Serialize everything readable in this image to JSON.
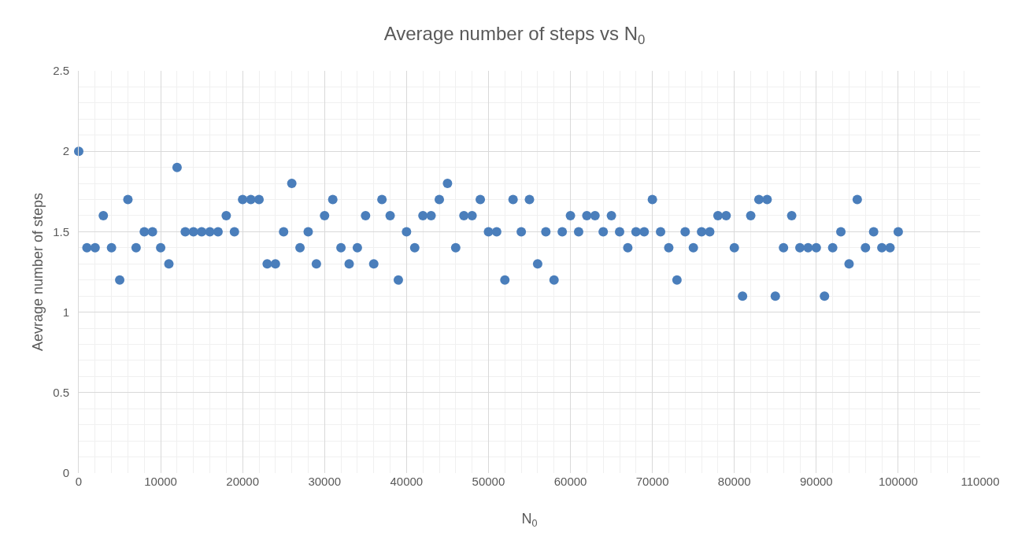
{
  "chart_data": {
    "type": "scatter",
    "title": "Average number of steps vs N$_{0}$",
    "xlabel": "N$_{0}$",
    "ylabel": "Aevrage number of steps",
    "x": [
      0,
      1000,
      2000,
      3000,
      4000,
      5000,
      6000,
      7000,
      8000,
      9000,
      10000,
      11000,
      12000,
      13000,
      14000,
      15000,
      16000,
      17000,
      18000,
      19000,
      20000,
      21000,
      22000,
      23000,
      24000,
      25000,
      26000,
      27000,
      28000,
      29000,
      30000,
      31000,
      32000,
      33000,
      34000,
      35000,
      36000,
      37000,
      38000,
      39000,
      40000,
      41000,
      42000,
      43000,
      44000,
      45000,
      46000,
      47000,
      48000,
      49000,
      50000,
      51000,
      52000,
      53000,
      54000,
      55000,
      56000,
      57000,
      58000,
      59000,
      60000,
      61000,
      62000,
      63000,
      64000,
      65000,
      66000,
      67000,
      68000,
      69000,
      70000,
      71000,
      72000,
      73000,
      74000,
      75000,
      76000,
      77000,
      78000,
      79000,
      80000,
      81000,
      82000,
      83000,
      84000,
      85000,
      86000,
      87000,
      88000,
      89000,
      90000,
      91000,
      92000,
      93000,
      94000,
      95000,
      96000,
      97000,
      98000,
      99000,
      100000
    ],
    "series": [
      {
        "color": "#4a7ebb",
        "values": [
          2.0,
          1.4,
          1.4,
          1.6,
          1.4,
          1.2,
          1.7,
          1.4,
          1.5,
          1.5,
          1.4,
          1.3,
          1.9,
          1.5,
          1.5,
          1.5,
          1.5,
          1.5,
          1.6,
          1.5,
          1.7,
          1.7,
          1.7,
          1.3,
          1.3,
          1.5,
          1.8,
          1.4,
          1.5,
          1.3,
          1.6,
          1.7,
          1.4,
          1.3,
          1.4,
          1.6,
          1.3,
          1.7,
          1.6,
          1.2,
          1.5,
          1.4,
          1.6,
          1.6,
          1.7,
          1.8,
          1.4,
          1.6,
          1.6,
          1.7,
          1.5,
          1.5,
          1.2,
          1.7,
          1.5,
          1.7,
          1.3,
          1.5,
          1.2,
          1.5,
          1.6,
          1.5,
          1.6,
          1.6,
          1.5,
          1.6,
          1.5,
          1.4,
          1.5,
          1.5,
          1.7,
          1.5,
          1.4,
          1.2,
          1.5,
          1.4,
          1.5,
          1.5,
          1.6,
          1.6,
          1.4,
          1.1,
          1.6,
          1.7,
          1.7,
          1.1,
          1.4,
          1.6,
          1.4,
          1.4,
          1.4,
          1.1,
          1.4,
          1.5,
          1.3,
          1.7,
          1.4,
          1.5,
          1.4,
          1.4,
          1.5
        ]
      }
    ],
    "xlim": [
      0,
      110000
    ],
    "xticks": [
      0,
      10000,
      20000,
      30000,
      40000,
      50000,
      60000,
      70000,
      80000,
      90000,
      100000,
      110000
    ],
    "ylim": [
      0,
      2.5
    ],
    "yticks": [
      {
        "value": 0,
        "label": "0"
      },
      {
        "value": 0.5,
        "label": "0.5"
      },
      {
        "value": 1,
        "label": "1"
      },
      {
        "value": 1.5,
        "label": "1.5"
      },
      {
        "value": 2,
        "label": "2"
      },
      {
        "value": 2.5,
        "label": "2.5"
      }
    ],
    "grid": true,
    "marker": "circle"
  }
}
